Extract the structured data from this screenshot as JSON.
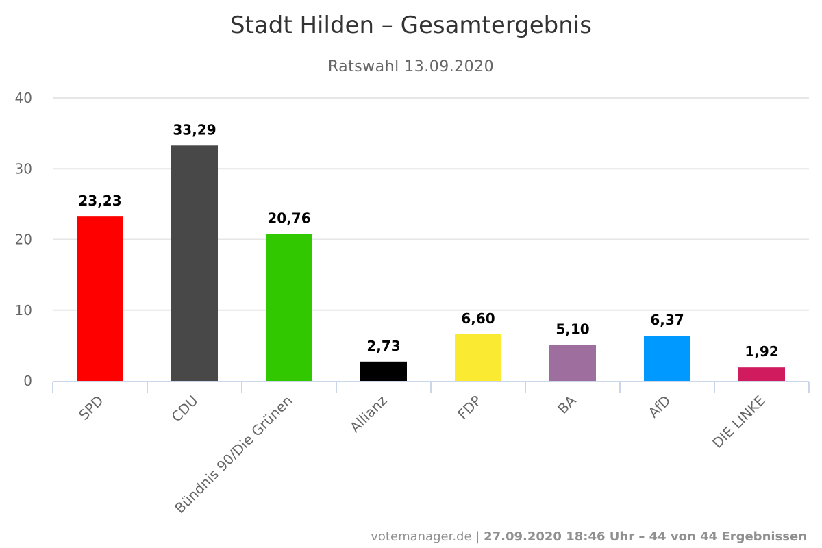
{
  "chart_data": {
    "type": "bar",
    "title": "Stadt Hilden – Gesamtergebnis",
    "subtitle": "Ratswahl 13.09.2020",
    "categories": [
      "SPD",
      "CDU",
      "Bündnis 90/Die Grünen",
      "Allianz",
      "FDP",
      "BA",
      "AfD",
      "DIE LINKE"
    ],
    "values": [
      23.23,
      33.29,
      20.76,
      2.73,
      6.6,
      5.1,
      6.37,
      1.92
    ],
    "data_labels": [
      "23,23",
      "33,29",
      "20,76",
      "2,73",
      "6,60",
      "5,10",
      "6,37",
      "1,92"
    ],
    "colors": [
      "#ff0000",
      "#484848",
      "#32c800",
      "#000000",
      "#faeb32",
      "#9e6f9e",
      "#0099ff",
      "#d01b5e"
    ],
    "yticks": [
      "0",
      "10",
      "20",
      "30",
      "40"
    ],
    "ylim": [
      0,
      40
    ],
    "grid": true,
    "legend": "none"
  },
  "credits": {
    "source": "votemanager.de",
    "separator": " | ",
    "status": "27.09.2020 18:46 Uhr – 44 von 44 Ergebnissen"
  }
}
